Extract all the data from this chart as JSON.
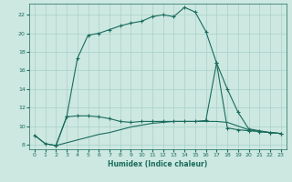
{
  "xlabel": "Humidex (Indice chaleur)",
  "background_color": "#cce8e0",
  "grid_color": "#aad0c8",
  "line_color": "#1a6b5e",
  "xlim": [
    -0.5,
    23.5
  ],
  "ylim": [
    7.5,
    23.2
  ],
  "yticks": [
    8,
    10,
    12,
    14,
    16,
    18,
    20,
    22
  ],
  "xticks": [
    0,
    1,
    2,
    3,
    4,
    5,
    6,
    7,
    8,
    9,
    10,
    11,
    12,
    13,
    14,
    15,
    16,
    17,
    18,
    19,
    20,
    21,
    22,
    23
  ],
  "line1_x": [
    0,
    1,
    2,
    3,
    4,
    5,
    6,
    7,
    8,
    9,
    10,
    11,
    12,
    13,
    14,
    15,
    16,
    17,
    18,
    19,
    20,
    21,
    22,
    23
  ],
  "line1_y": [
    9.0,
    8.1,
    7.9,
    11.0,
    17.3,
    19.8,
    20.0,
    20.4,
    20.8,
    21.1,
    21.3,
    21.8,
    22.0,
    21.8,
    22.8,
    22.3,
    20.2,
    16.8,
    9.8,
    9.6,
    9.5,
    9.4,
    9.3,
    9.2
  ],
  "line2_x": [
    2,
    3,
    4,
    5,
    6,
    7,
    8,
    9,
    10,
    11,
    12,
    13,
    14,
    15,
    16,
    17,
    18,
    19,
    20,
    21,
    22,
    23
  ],
  "line2_y": [
    7.9,
    11.0,
    11.1,
    11.1,
    11.0,
    10.8,
    10.5,
    10.4,
    10.5,
    10.5,
    10.5,
    10.5,
    10.5,
    10.5,
    10.6,
    16.8,
    14.0,
    11.5,
    9.7,
    9.5,
    9.3,
    9.2
  ],
  "line3_x": [
    0,
    1,
    2,
    3,
    4,
    5,
    6,
    7,
    8,
    9,
    10,
    11,
    12,
    13,
    14,
    15,
    16,
    17,
    18,
    19,
    20,
    21,
    22,
    23
  ],
  "line3_y": [
    9.0,
    8.1,
    7.9,
    8.2,
    8.5,
    8.8,
    9.1,
    9.3,
    9.6,
    9.9,
    10.1,
    10.3,
    10.4,
    10.5,
    10.5,
    10.5,
    10.5,
    10.5,
    10.4,
    10.0,
    9.6,
    9.4,
    9.3,
    9.2
  ]
}
